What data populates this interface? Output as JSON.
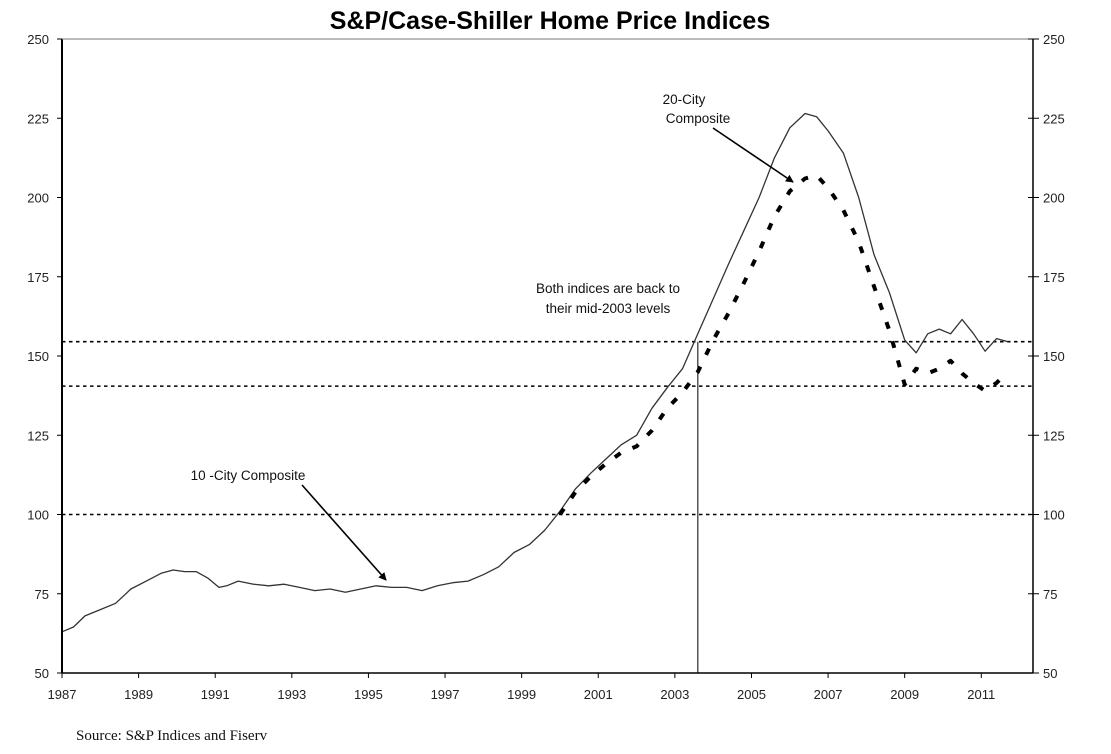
{
  "chart_data": {
    "type": "line",
    "title": "S&P/Case-Shiller Home Price Indices",
    "xlabel": "",
    "ylabel": "",
    "xlim": [
      1987,
      2012.35
    ],
    "ylim": [
      50,
      250
    ],
    "y_ticks": [
      50,
      75,
      100,
      125,
      150,
      175,
      200,
      225,
      250
    ],
    "y_tick_labels": [
      "50",
      "75",
      "100",
      "125",
      "150",
      "175",
      "200",
      "225",
      "250"
    ],
    "x_ticks": [
      1987,
      1989,
      1991,
      1993,
      1995,
      1997,
      1999,
      2001,
      2003,
      2005,
      2007,
      2009,
      2011
    ],
    "x_tick_labels": [
      "1987",
      "1989",
      "1991",
      "1993",
      "1995",
      "1997",
      "1999",
      "2001",
      "2003",
      "2005",
      "2007",
      "2009",
      "2011"
    ],
    "grid": false,
    "legend": "none",
    "reference_lines": {
      "horizontal": [
        100,
        154.5,
        140.5
      ],
      "vertical": [
        2003.6
      ]
    },
    "series": [
      {
        "name": "10-City Composite",
        "style": "solid",
        "x": [
          1987.0,
          1987.3,
          1987.6,
          1988.0,
          1988.4,
          1988.8,
          1989.2,
          1989.6,
          1989.9,
          1990.2,
          1990.5,
          1990.8,
          1991.1,
          1991.3,
          1991.6,
          1992.0,
          1992.4,
          1992.8,
          1993.2,
          1993.6,
          1994.0,
          1994.4,
          1994.8,
          1995.2,
          1995.6,
          1996.0,
          1996.4,
          1996.8,
          1997.2,
          1997.6,
          1998.0,
          1998.4,
          1998.8,
          1999.2,
          1999.6,
          2000.0,
          2000.4,
          2000.8,
          2001.2,
          2001.6,
          2002.0,
          2002.4,
          2002.8,
          2003.2,
          2003.6,
          2004.0,
          2004.4,
          2004.8,
          2005.2,
          2005.6,
          2006.0,
          2006.4,
          2006.7,
          2007.0,
          2007.4,
          2007.8,
          2008.2,
          2008.6,
          2009.0,
          2009.3,
          2009.6,
          2009.9,
          2010.2,
          2010.5,
          2010.8,
          2011.1,
          2011.4,
          2011.7
        ],
        "values": [
          63,
          64.5,
          68,
          70,
          72,
          76.5,
          79,
          81.5,
          82.5,
          82,
          82,
          80,
          77,
          77.5,
          79,
          78,
          77.5,
          78,
          77,
          76,
          76.5,
          75.5,
          76.5,
          77.5,
          77,
          77,
          76,
          77.5,
          78.5,
          79,
          81,
          83.5,
          88,
          90.5,
          95,
          101,
          108,
          113,
          117.5,
          122,
          125,
          133.5,
          140,
          146,
          157,
          168,
          179,
          189.5,
          200,
          212.5,
          222,
          226.5,
          225.5,
          221,
          214,
          200,
          182,
          170,
          155,
          151,
          157,
          158.5,
          157,
          161.5,
          157,
          151.5,
          155.5,
          154.5
        ]
      },
      {
        "name": "20-City Composite",
        "style": "dashed",
        "x": [
          2000.0,
          2000.4,
          2000.8,
          2001.2,
          2001.6,
          2002.0,
          2002.4,
          2002.8,
          2003.2,
          2003.6,
          2004.0,
          2004.4,
          2004.8,
          2005.2,
          2005.6,
          2006.0,
          2006.4,
          2006.7,
          2007.0,
          2007.4,
          2007.8,
          2008.2,
          2008.6,
          2009.0,
          2009.3,
          2009.6,
          2009.9,
          2010.2,
          2010.5,
          2010.8,
          2011.1,
          2011.4,
          2011.6
        ],
        "values": [
          100,
          107,
          112,
          116,
          119.5,
          121.5,
          126.5,
          133.5,
          138.5,
          145,
          155,
          163.5,
          173,
          183,
          194,
          202,
          206,
          207,
          203,
          196,
          186,
          172,
          158,
          141,
          146,
          144.5,
          146,
          148.5,
          144.5,
          141.5,
          139,
          141.5,
          144
        ]
      }
    ],
    "annotations": [
      {
        "id": "ten_city_label",
        "text": "10 -City Composite",
        "points_to": {
          "x": 1995.7,
          "y": 77.5
        }
      },
      {
        "id": "twenty_city_label_line1",
        "text": "20-City",
        "points_to": {
          "x": 2006.3,
          "y": 205
        }
      },
      {
        "id": "twenty_city_label_line2",
        "text": "Composite"
      },
      {
        "id": "both_indices_line1",
        "text": "Both indices are back to"
      },
      {
        "id": "both_indices_line2",
        "text": "their mid-2003 levels"
      }
    ],
    "source": "Source: S&P Indices and Fiserv"
  }
}
